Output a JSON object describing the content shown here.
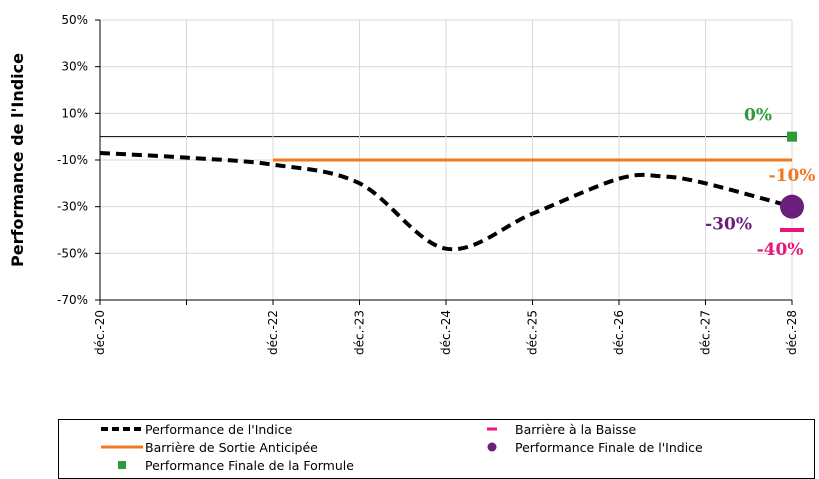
{
  "chart_data": {
    "type": "line",
    "ylabel": "Performance de l'Indice",
    "xlabel": "",
    "yticks": [
      "50%",
      "30%",
      "10%",
      "-10%",
      "-30%",
      "-50%",
      "-70%"
    ],
    "ylim": [
      -70,
      50
    ],
    "categories": [
      "déc.-20",
      "",
      "déc.-22",
      "déc.-23",
      "déc.-24",
      "déc.-25",
      "déc.-26",
      "déc.-27",
      "déc.-28"
    ],
    "grid": true,
    "legend_position": "bottom",
    "series": [
      {
        "name": "Performance de l'Indice",
        "style": "dashed",
        "color": "#000000",
        "x": [
          0,
          1,
          2,
          3,
          4,
          5,
          6,
          6.5,
          7,
          8
        ],
        "values": [
          -7,
          -9,
          -12,
          -20,
          -48,
          -33,
          -18,
          -17,
          -20,
          -30
        ]
      },
      {
        "name": "Barrière de Sortie Anticipée",
        "style": "solid",
        "color": "#f07820",
        "x": [
          2,
          8
        ],
        "values": [
          -10,
          -10
        ]
      },
      {
        "name": "Performance Finale de la Formule",
        "style": "square-marker",
        "color": "#2e9a3a",
        "x": [
          8
        ],
        "values": [
          0
        ]
      },
      {
        "name": "Barrière à la Baisse",
        "style": "dash-marker",
        "color": "#e8157a",
        "x": [
          8
        ],
        "values": [
          -40
        ]
      },
      {
        "name": "Performance Finale de l'Indice",
        "style": "circle-marker",
        "color": "#6a1f7a",
        "x": [
          8
        ],
        "values": [
          -30
        ]
      }
    ],
    "annotations": [
      {
        "text": "0%",
        "color": "#2e9a3a",
        "value": 0
      },
      {
        "text": "-10%",
        "color": "#f07820",
        "value": -10
      },
      {
        "text": "-30%",
        "color": "#6a1f7a",
        "value": -30
      },
      {
        "text": "-40%",
        "color": "#e8157a",
        "value": -40
      }
    ]
  },
  "legend": {
    "col1": [
      "Performance de l'Indice",
      "Barrière de Sortie Anticipée",
      "Performance Finale de la Formule"
    ],
    "col2": [
      "Barrière à la Baisse",
      "Performance Finale de l'Indice"
    ]
  }
}
